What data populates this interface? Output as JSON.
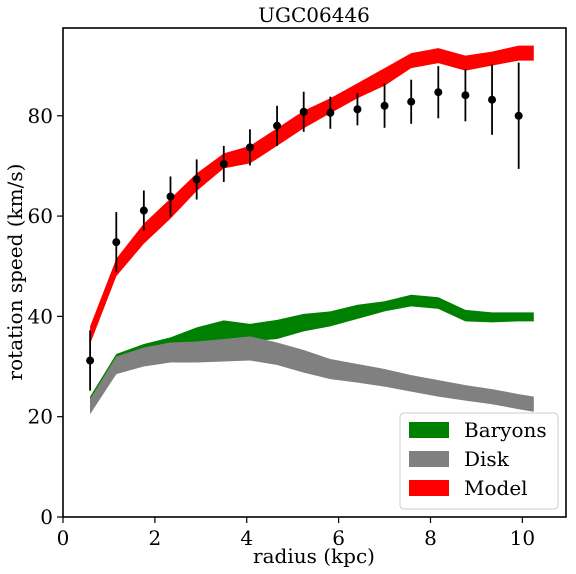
{
  "chart_data": {
    "type": "area",
    "title": "UGC06446",
    "xlabel": "radius (kpc)",
    "ylabel": "rotation speed (km/s)",
    "xlim": [
      0,
      10.95
    ],
    "ylim": [
      0,
      97.5
    ],
    "xticks": [
      "0",
      "2",
      "4",
      "6",
      "8",
      "10"
    ],
    "yticks": [
      "0",
      "20",
      "40",
      "60",
      "80"
    ],
    "grid": false,
    "legend_position": "lower-right",
    "series": [
      {
        "name": "Baryons",
        "type": "band",
        "color": "#008000",
        "x": [
          0.59,
          1.16,
          1.76,
          2.34,
          2.91,
          3.5,
          4.07,
          4.66,
          5.24,
          5.82,
          6.41,
          7.0,
          7.58,
          8.17,
          8.76,
          9.34,
          9.92,
          10.25
        ],
        "lower": [
          21.0,
          28.5,
          30.5,
          31.5,
          33.5,
          34.5,
          35.0,
          35.5,
          37.0,
          38.0,
          39.5,
          41.0,
          42.0,
          41.5,
          39.0,
          38.8,
          39.0,
          39.0
        ],
        "upper": [
          24.0,
          32.5,
          34.5,
          35.8,
          37.8,
          39.2,
          38.5,
          39.3,
          40.5,
          41.0,
          42.3,
          43.0,
          44.3,
          43.8,
          41.3,
          40.8,
          40.8,
          40.8
        ]
      },
      {
        "name": "Disk",
        "type": "band",
        "color": "#808080",
        "x": [
          0.59,
          1.16,
          1.76,
          2.34,
          2.91,
          3.5,
          4.07,
          4.66,
          5.24,
          5.82,
          6.41,
          7.0,
          7.58,
          8.17,
          8.76,
          9.34,
          9.92,
          10.25
        ],
        "lower": [
          20.5,
          28.5,
          30.0,
          30.8,
          30.8,
          31.0,
          31.2,
          30.3,
          28.8,
          27.5,
          26.8,
          26.0,
          25.0,
          24.0,
          23.2,
          22.5,
          21.5,
          21.0
        ],
        "upper": [
          23.5,
          32.0,
          33.8,
          34.8,
          35.0,
          35.5,
          36.0,
          34.8,
          33.3,
          31.5,
          30.5,
          29.5,
          28.3,
          27.3,
          26.3,
          25.5,
          24.5,
          24.0
        ]
      },
      {
        "name": "Model",
        "type": "band",
        "color": "#ff0000",
        "x": [
          0.59,
          1.16,
          1.76,
          2.34,
          2.91,
          3.5,
          4.07,
          4.66,
          5.24,
          5.82,
          6.41,
          7.0,
          7.58,
          8.17,
          8.76,
          9.34,
          9.92,
          10.25
        ],
        "lower": [
          34.5,
          48.0,
          54.5,
          59.5,
          65.0,
          69.5,
          70.5,
          74.0,
          77.5,
          80.5,
          83.5,
          86.0,
          89.5,
          90.5,
          89.0,
          90.0,
          91.0,
          91.0
        ],
        "upper": [
          38.0,
          51.5,
          58.5,
          63.5,
          68.5,
          72.5,
          74.0,
          77.5,
          81.0,
          83.5,
          86.5,
          89.5,
          92.5,
          93.5,
          92.0,
          92.8,
          94.0,
          94.0
        ]
      },
      {
        "name": "",
        "type": "errorbar",
        "color": "#000000",
        "x": [
          0.59,
          1.16,
          1.76,
          2.34,
          2.91,
          3.5,
          4.07,
          4.66,
          5.24,
          5.82,
          6.41,
          7.0,
          7.58,
          8.17,
          8.76,
          9.34,
          9.92
        ],
        "y": [
          31.2,
          54.8,
          61.1,
          63.9,
          67.3,
          70.4,
          73.7,
          78.0,
          80.8,
          80.6,
          81.3,
          82.0,
          82.8,
          84.7,
          84.1,
          83.2,
          80.0
        ],
        "yerr": [
          6.0,
          6.0,
          4.0,
          4.0,
          4.0,
          3.6,
          3.6,
          4.0,
          4.0,
          3.2,
          3.2,
          4.4,
          4.4,
          5.2,
          5.2,
          7.0,
          10.6
        ]
      }
    ]
  }
}
